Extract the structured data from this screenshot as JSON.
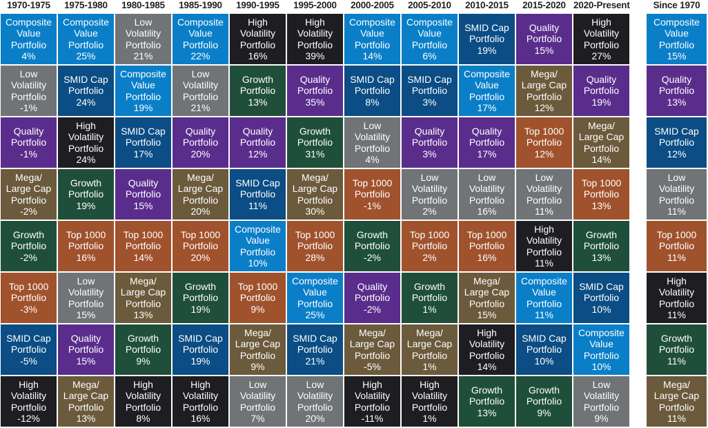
{
  "chart_data": {
    "type": "table",
    "periods": [
      "1970-1975",
      "1975-1980",
      "1980-1985",
      "1985-1990",
      "1990-1995",
      "1995-2000",
      "2000-2005",
      "2005-2010",
      "2010-2015",
      "2015-2020",
      "2020-Present",
      "Since 1970"
    ],
    "strategies": {
      "composite-value": {
        "label": "Composite\nValue\nPortfolio",
        "color": "#0a7fc8"
      },
      "low-volatility": {
        "label": "Low\nVolatility\nPortfolio",
        "color": "#707477"
      },
      "quality": {
        "label": "Quality\nPortfolio",
        "color": "#5a2d8c"
      },
      "mega-large-cap": {
        "label": "Mega/\nLarge Cap\nPortfolio",
        "color": "#6b5a3c"
      },
      "growth": {
        "label": "Growth\nPortfolio",
        "color": "#1f4f3a"
      },
      "top-1000": {
        "label": "Top 1000\nPortfolio",
        "color": "#a0522d"
      },
      "smid-cap": {
        "label": "SMID Cap\nPortfolio",
        "color": "#0b4d84"
      },
      "high-volatility": {
        "label": "High\nVolatility\nPortfolio",
        "color": "#1e1d21"
      }
    },
    "columns": [
      [
        [
          "composite-value",
          "4%"
        ],
        [
          "low-volatility",
          "-1%"
        ],
        [
          "quality",
          "-1%"
        ],
        [
          "mega-large-cap",
          "-2%"
        ],
        [
          "growth",
          "-2%"
        ],
        [
          "top-1000",
          "-3%"
        ],
        [
          "smid-cap",
          "-5%"
        ],
        [
          "high-volatility",
          "-12%"
        ]
      ],
      [
        [
          "composite-value",
          "25%"
        ],
        [
          "smid-cap",
          "24%"
        ],
        [
          "high-volatility",
          "24%"
        ],
        [
          "growth",
          "19%"
        ],
        [
          "top-1000",
          "16%"
        ],
        [
          "low-volatility",
          "15%"
        ],
        [
          "quality",
          "15%"
        ],
        [
          "mega-large-cap",
          "13%"
        ]
      ],
      [
        [
          "low-volatility",
          "21%"
        ],
        [
          "composite-value",
          "19%"
        ],
        [
          "smid-cap",
          "17%"
        ],
        [
          "quality",
          "15%"
        ],
        [
          "top-1000",
          "14%"
        ],
        [
          "mega-large-cap",
          "13%"
        ],
        [
          "growth",
          "9%"
        ],
        [
          "high-volatility",
          "8%"
        ]
      ],
      [
        [
          "composite-value",
          "22%"
        ],
        [
          "low-volatility",
          "21%"
        ],
        [
          "quality",
          "20%"
        ],
        [
          "mega-large-cap",
          "20%"
        ],
        [
          "top-1000",
          "20%"
        ],
        [
          "growth",
          "19%"
        ],
        [
          "smid-cap",
          "19%"
        ],
        [
          "high-volatility",
          "16%"
        ]
      ],
      [
        [
          "high-volatility",
          "16%"
        ],
        [
          "growth",
          "13%"
        ],
        [
          "quality",
          "12%"
        ],
        [
          "smid-cap",
          "11%"
        ],
        [
          "composite-value",
          "10%"
        ],
        [
          "top-1000",
          "9%"
        ],
        [
          "mega-large-cap",
          "9%"
        ],
        [
          "low-volatility",
          "7%"
        ]
      ],
      [
        [
          "high-volatility",
          "39%"
        ],
        [
          "quality",
          "35%"
        ],
        [
          "growth",
          "31%"
        ],
        [
          "mega-large-cap",
          "30%"
        ],
        [
          "top-1000",
          "28%"
        ],
        [
          "composite-value",
          "25%"
        ],
        [
          "smid-cap",
          "21%"
        ],
        [
          "low-volatility",
          "20%"
        ]
      ],
      [
        [
          "composite-value",
          "14%"
        ],
        [
          "smid-cap",
          "8%"
        ],
        [
          "low-volatility",
          "4%"
        ],
        [
          "top-1000",
          "-1%"
        ],
        [
          "growth",
          "-2%"
        ],
        [
          "quality",
          "-2%"
        ],
        [
          "mega-large-cap",
          "-5%"
        ],
        [
          "high-volatility",
          "-11%"
        ]
      ],
      [
        [
          "composite-value",
          "6%"
        ],
        [
          "smid-cap",
          "3%"
        ],
        [
          "quality",
          "3%"
        ],
        [
          "low-volatility",
          "2%"
        ],
        [
          "top-1000",
          "2%"
        ],
        [
          "growth",
          "1%"
        ],
        [
          "mega-large-cap",
          "1%"
        ],
        [
          "high-volatility",
          "1%"
        ]
      ],
      [
        [
          "smid-cap",
          "19%"
        ],
        [
          "composite-value",
          "17%"
        ],
        [
          "quality",
          "17%"
        ],
        [
          "low-volatility",
          "16%"
        ],
        [
          "top-1000",
          "16%"
        ],
        [
          "mega-large-cap",
          "15%"
        ],
        [
          "high-volatility",
          "14%"
        ],
        [
          "growth",
          "13%"
        ]
      ],
      [
        [
          "quality",
          "15%"
        ],
        [
          "mega-large-cap",
          "12%"
        ],
        [
          "top-1000",
          "12%"
        ],
        [
          "low-volatility",
          "11%"
        ],
        [
          "high-volatility",
          "11%"
        ],
        [
          "composite-value",
          "11%"
        ],
        [
          "smid-cap",
          "10%"
        ],
        [
          "growth",
          "9%"
        ]
      ],
      [
        [
          "high-volatility",
          "27%"
        ],
        [
          "quality",
          "19%"
        ],
        [
          "mega-large-cap",
          "14%"
        ],
        [
          "top-1000",
          "13%"
        ],
        [
          "growth",
          "13%"
        ],
        [
          "smid-cap",
          "10%"
        ],
        [
          "composite-value",
          "10%"
        ],
        [
          "low-volatility",
          "9%"
        ]
      ],
      [
        [
          "composite-value",
          "15%"
        ],
        [
          "quality",
          "13%"
        ],
        [
          "smid-cap",
          "12%"
        ],
        [
          "low-volatility",
          "11%"
        ],
        [
          "top-1000",
          "11%"
        ],
        [
          "high-volatility",
          "11%"
        ],
        [
          "growth",
          "11%"
        ],
        [
          "mega-large-cap",
          "11%"
        ]
      ]
    ]
  }
}
